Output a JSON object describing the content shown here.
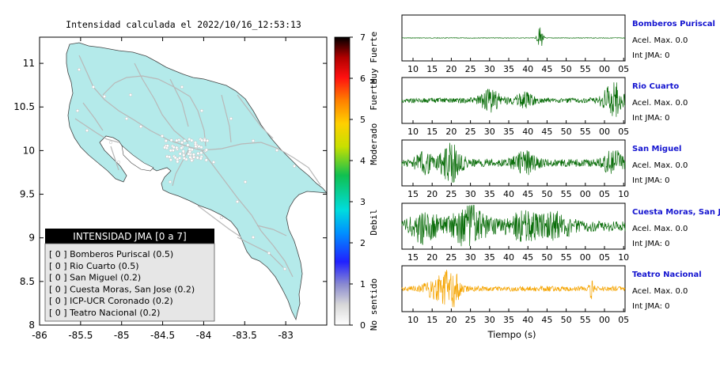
{
  "title": "Intensidad calculada el 2022/10/16_12:53:13",
  "map": {
    "x_ticks": [
      "-86",
      "-85.5",
      "-85",
      "-84.5",
      "-84",
      "-83.5",
      "-83"
    ],
    "y_ticks": [
      "11",
      "10.5",
      "10",
      "9.5",
      "9",
      "8.5",
      "8"
    ],
    "xlim": [
      -86,
      -82.5
    ],
    "ylim": [
      8,
      11.3
    ],
    "land_color": "#b4eaea",
    "road_color": "#b8b8b8"
  },
  "colorbar": {
    "ticks": [
      "0",
      "1",
      "2",
      "3",
      "4",
      "5",
      "6",
      "7"
    ],
    "labels": [
      {
        "text": "No sentido",
        "at": 0.5
      },
      {
        "text": "Debil",
        "at": 2.5
      },
      {
        "text": "Moderado",
        "at": 4.4
      },
      {
        "text": "Fuerte",
        "at": 5.6
      },
      {
        "text": "Muy Fuerte",
        "at": 6.5
      }
    ]
  },
  "legend": {
    "header": "INTENSIDAD JMA [0 a 7]",
    "items": [
      "[ 0 ]  Bomberos Puriscal (0.5)",
      "[ 0 ]  Rio Cuarto (0.5)",
      "[ 0 ]  San Miguel (0.2)",
      "[ 0 ]  Cuesta Moras, San Jose (0.2)",
      "[ 0 ]  ICP-UCR Coronado (0.2)",
      "[ 0 ]  Teatro Nacional (0.2)"
    ]
  },
  "chart_data": {
    "type": "line",
    "xlabel": "Tiempo (s)",
    "stations": [
      {
        "name": "Bomberos Puriscal",
        "acel": "Acel. Max. 0.0",
        "int": "Int JMA: 0",
        "color": "#0b6e0b",
        "ticks": [
          "10",
          "15",
          "20",
          "25",
          "30",
          "35",
          "40",
          "45",
          "50",
          "55",
          "00",
          "05"
        ]
      },
      {
        "name": "Rio Cuarto",
        "acel": "Acel. Max. 0.0",
        "int": "Int JMA: 0",
        "color": "#0b6e0b",
        "ticks": [
          "10",
          "15",
          "20",
          "25",
          "30",
          "35",
          "40",
          "45",
          "50",
          "55",
          "00",
          "05"
        ]
      },
      {
        "name": "San Miguel",
        "acel": "Acel. Max. 0.0",
        "int": "Int JMA: 0",
        "color": "#0b6e0b",
        "ticks": [
          "15",
          "20",
          "25",
          "30",
          "35",
          "40",
          "45",
          "50",
          "55",
          "00",
          "05",
          "10"
        ]
      },
      {
        "name": "Cuesta Moras, San Jose",
        "acel": "Acel. Max. 0.0",
        "int": "Int JMA: 0",
        "color": "#0b6e0b",
        "ticks": [
          "15",
          "20",
          "25",
          "30",
          "35",
          "40",
          "45",
          "50",
          "55",
          "00",
          "05",
          "10"
        ]
      },
      {
        "name": "Teatro Nacional",
        "acel": "Acel. Max. 0.0",
        "int": "Int JMA: 0",
        "color": "#f5a400",
        "ticks": [
          "10",
          "15",
          "20",
          "25",
          "30",
          "35",
          "40",
          "45",
          "50",
          "55",
          "00",
          "05"
        ]
      }
    ]
  }
}
